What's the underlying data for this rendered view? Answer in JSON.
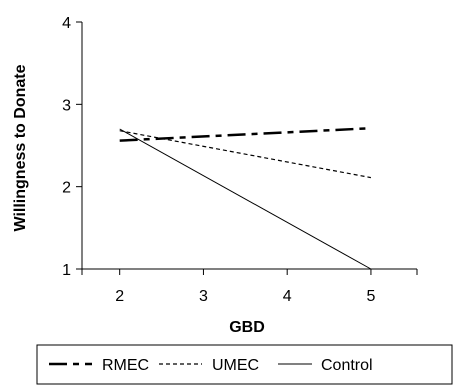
{
  "chart_data": {
    "type": "line",
    "xlabel": "GBD",
    "ylabel": "Willingness to Donate",
    "xlim": [
      1.55,
      5.55
    ],
    "ylim": [
      1,
      4
    ],
    "x_ticks": [
      2,
      3,
      4,
      5
    ],
    "y_ticks": [
      1,
      2,
      3,
      4
    ],
    "grid": false,
    "legend_position": "bottom",
    "series": [
      {
        "name": "RMEC",
        "style": "dash-dot",
        "x": [
          2,
          5
        ],
        "y": [
          2.56,
          2.71
        ],
        "color": "#000000"
      },
      {
        "name": "UMEC",
        "style": "dotted",
        "x": [
          2,
          5
        ],
        "y": [
          2.68,
          2.11
        ],
        "color": "#000000"
      },
      {
        "name": "Control",
        "style": "solid",
        "x": [
          2,
          5
        ],
        "y": [
          2.7,
          1.0
        ],
        "color": "#000000"
      }
    ]
  }
}
